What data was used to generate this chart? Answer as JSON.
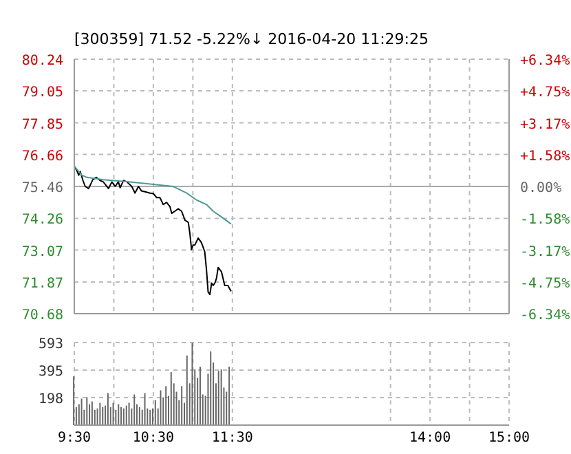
{
  "chart_data": [
    {
      "type": "line",
      "title": "[300359] 71.52 -5.22%↓ 2016-04-20 11:29:25",
      "xlim": [
        9.5,
        15
      ],
      "xticks": [
        9.5,
        10,
        10.5,
        11,
        11.5,
        13.5,
        14,
        14.5,
        15
      ],
      "tick_labels": "y",
      "ylim": [
        70.68,
        80.24
      ],
      "yticks": [
        70.68,
        71.87,
        73.07,
        74.26,
        75.46,
        76.66,
        77.85,
        79.05,
        80.24
      ],
      "y2lim": [
        -6.34,
        6.34
      ],
      "y2ticks": [
        {
          "value": -6.34,
          "label": "-6.34%"
        },
        {
          "value": -4.75,
          "label": "-4.75%"
        },
        {
          "value": -3.17,
          "label": "-3.17%"
        },
        {
          "value": -1.58,
          "label": "-1.58%"
        },
        {
          "value": 0,
          "label": "0.00%"
        },
        {
          "value": 1.58,
          "label": "+1.58%"
        },
        {
          "value": 3.17,
          "label": "+3.17%"
        },
        {
          "value": 4.75,
          "label": "+4.75%"
        },
        {
          "value": 6.34,
          "label": "+6.34%"
        }
      ],
      "grid": true,
      "ref_lines": [
        {
          "axis": "y",
          "value": 75.46
        }
      ],
      "series": [
        {
          "color": "#000000",
          "x": [
            9.5,
            9.533,
            9.555,
            9.575,
            9.61,
            9.638,
            9.68,
            9.702,
            9.733,
            9.777,
            9.828,
            9.867,
            9.933,
            9.975,
            10.017,
            10.058,
            10.08,
            10.122,
            10.167,
            10.227,
            10.267,
            10.312,
            10.35,
            10.395,
            10.458,
            10.5,
            10.542,
            10.583,
            10.625,
            10.667,
            10.71,
            10.732,
            10.773,
            10.815,
            10.857,
            10.9,
            10.942,
            10.962,
            10.983,
            11.003,
            11.025,
            11.067,
            11.108,
            11.15,
            11.172,
            11.193,
            11.215,
            11.237,
            11.257,
            11.278,
            11.298,
            11.32,
            11.362,
            11.403,
            11.443,
            11.483
          ],
          "values": [
            76.22,
            76.05,
            75.88,
            76.02,
            75.68,
            75.46,
            75.38,
            75.51,
            75.71,
            75.8,
            75.68,
            75.63,
            75.38,
            75.63,
            75.46,
            75.63,
            75.41,
            75.68,
            75.63,
            75.46,
            75.21,
            75.46,
            75.29,
            75.26,
            75.21,
            75.19,
            75.04,
            75.04,
            74.78,
            74.86,
            74.7,
            74.45,
            74.53,
            74.62,
            74.53,
            74.19,
            74.11,
            73.69,
            73.09,
            73.26,
            73.26,
            73.52,
            73.35,
            73.01,
            72.33,
            71.49,
            71.4,
            71.83,
            71.74,
            71.83,
            72.0,
            72.42,
            72.25,
            71.74,
            71.74,
            71.52
          ]
        },
        {
          "color": "#4f9a96",
          "x": [
            9.5,
            9.597,
            9.66,
            9.867,
            10.207,
            10.5,
            10.75,
            10.92,
            11.047,
            11.172,
            11.257,
            11.34,
            11.483
          ],
          "values": [
            76.22,
            75.88,
            75.8,
            75.71,
            75.63,
            75.54,
            75.46,
            75.21,
            74.95,
            74.78,
            74.53,
            74.36,
            74.05
          ]
        }
      ]
    },
    {
      "type": "bar",
      "x": [
        9.5,
        9.533,
        9.567,
        9.6,
        9.633,
        9.667,
        9.7,
        9.733,
        9.767,
        9.8,
        9.833,
        9.867,
        9.9,
        9.933,
        9.967,
        10,
        10.033,
        10.067,
        10.1,
        10.133,
        10.167,
        10.2,
        10.233,
        10.267,
        10.3,
        10.333,
        10.367,
        10.4,
        10.433,
        10.467,
        10.5,
        10.533,
        10.567,
        10.6,
        10.633,
        10.667,
        10.7,
        10.733,
        10.767,
        10.8,
        10.833,
        10.867,
        10.9,
        10.933,
        10.967,
        11,
        11.033,
        11.067,
        11.1,
        11.133,
        11.167,
        11.2,
        11.233,
        11.267,
        11.3,
        11.333,
        11.367,
        11.4,
        11.433,
        11.467
      ],
      "values": [
        350,
        130,
        150,
        190,
        110,
        200,
        150,
        170,
        110,
        120,
        160,
        130,
        140,
        230,
        130,
        160,
        110,
        150,
        130,
        120,
        140,
        160,
        120,
        220,
        150,
        130,
        110,
        230,
        120,
        110,
        120,
        180,
        120,
        250,
        200,
        280,
        210,
        380,
        300,
        240,
        180,
        280,
        160,
        500,
        300,
        590,
        400,
        340,
        420,
        220,
        210,
        370,
        530,
        450,
        300,
        390,
        400,
        270,
        240,
        420
      ],
      "color": "#666666",
      "xlim": [
        9.5,
        15
      ],
      "xticks": [
        {
          "value": 9.5,
          "label": "9:30"
        },
        {
          "value": 10,
          "label": null
        },
        {
          "value": 10.5,
          "label": "10:30"
        },
        {
          "value": 11,
          "label": null
        },
        {
          "value": 11.5,
          "label": "11:30"
        },
        {
          "value": 13.5,
          "label": null
        },
        {
          "value": 14,
          "label": "14:00"
        },
        {
          "value": 14.5,
          "label": null
        },
        {
          "value": 15,
          "label": "15:00"
        }
      ],
      "ylim": [
        0,
        593
      ],
      "yticks": [
        198,
        395,
        593
      ],
      "grid": true
    }
  ]
}
